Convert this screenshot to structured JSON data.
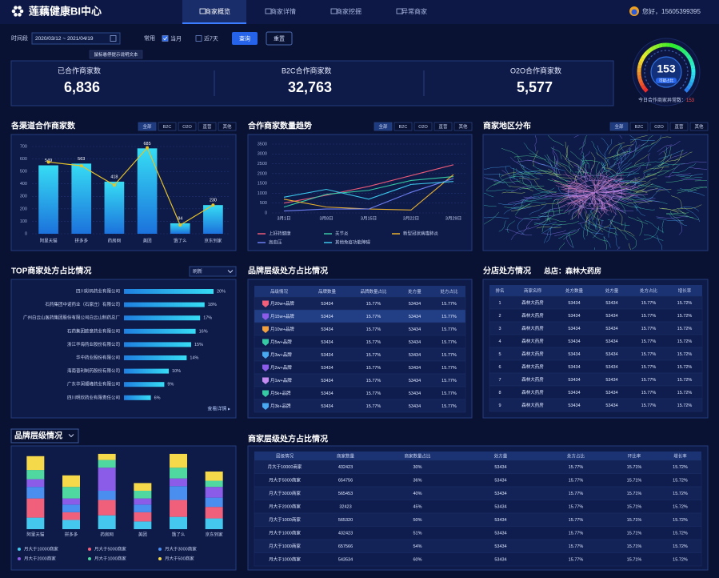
{
  "header": {
    "logo": "莲藕健康BI中心",
    "tabs": [
      "商家概览",
      "商家详情",
      "商家挖掘",
      "异常商家"
    ],
    "user": "您好，15605399395"
  },
  "filters": {
    "label": "时间段",
    "range": "2020/03/12 ~ 2021/04/19",
    "common": "常用",
    "options": [
      "当月",
      "近7天"
    ],
    "checked": [
      true,
      false
    ],
    "query": "查询",
    "reset": "重置",
    "tooltip": "鼠标悬停提示说明文本"
  },
  "kpis": [
    {
      "label": "已合作商家数",
      "value": "6,836"
    },
    {
      "label": "B2C合作商家数",
      "value": "32,763"
    },
    {
      "label": "O2O合作商家数",
      "value": "5,577"
    }
  ],
  "gauge": {
    "value": 153,
    "tag": "可疑占比",
    "caption": "今日合作商家异常数：",
    "count": "153"
  },
  "tabs": [
    "全部",
    "B2C",
    "O2O",
    "直营",
    "其他"
  ],
  "chart_data": [
    {
      "type": "bar_line",
      "title": "各渠道合作商家数",
      "categories": [
        "阿里天猫",
        "拼多多",
        "药房网",
        "美团",
        "饿了么",
        "京东到家"
      ],
      "series": [
        {
          "type": "bar",
          "color": "#2bc8ef",
          "values": [
            549,
            563,
            418,
            685,
            84,
            230
          ]
        },
        {
          "type": "line",
          "color": "#e6c229",
          "values": [
            575,
            545,
            390,
            690,
            70,
            230
          ]
        }
      ],
      "ylim": [
        0,
        700
      ],
      "yticks": [
        0,
        100,
        200,
        300,
        400,
        500,
        600,
        700
      ],
      "grid": true
    },
    {
      "type": "line",
      "title": "合作商家数量趋势",
      "categories": [
        "3月1日",
        "3月8日",
        "3月15日",
        "3月22日",
        "3月29日"
      ],
      "series": [
        {
          "name": "上好药健康",
          "color": "#e85a78",
          "values": [
            500,
            900,
            1350,
            1900,
            2450
          ]
        },
        {
          "name": "关节炎",
          "color": "#36c9a3",
          "values": [
            300,
            950,
            1150,
            1650,
            1850
          ]
        },
        {
          "name": "新型冠状病毒肺炎",
          "color": "#e8b02e",
          "values": [
            700,
            300,
            200,
            150,
            1950
          ]
        },
        {
          "name": "高血压",
          "color": "#6d7ef0",
          "values": [
            100,
            200,
            200,
            1050,
            1750
          ]
        },
        {
          "name": "其他免疫功能障碍",
          "color": "#3cc6ea",
          "values": [
            800,
            1200,
            700,
            1450,
            1600
          ]
        }
      ],
      "ylim": [
        0,
        3500
      ],
      "yticks": [
        0,
        500,
        1000,
        1500,
        2000,
        2500,
        3000,
        3500
      ],
      "grid": true
    },
    {
      "type": "hbar",
      "title": "TOP商家处方占比情况",
      "dropdown": "刷新",
      "link": "查看详情 ▸",
      "categories": [
        "四川彩码药业有限公司",
        "石药集团中诺药业（石家庄）有限公司",
        "广州白云山医药集团股份有限公司白云山制药总厂",
        "石药集团欧意药业有限公司",
        "浙江华海药业股份有限公司",
        "华中药业股份有限公司",
        "海南普利制药股份有限公司",
        "广东华润顺峰药业有限公司",
        "四川明欣药业有限责任公司"
      ],
      "values": [
        20,
        18,
        17,
        16,
        15,
        14,
        10,
        9,
        6
      ],
      "value_labels": [
        "20%",
        "18%",
        "17%",
        "16%",
        "15%",
        "14%",
        "10%",
        "9%",
        "6%"
      ],
      "color": "#2bc8ef",
      "xlim": [
        0,
        20
      ]
    },
    {
      "type": "stacked_bar",
      "title": "品牌层级情况",
      "categories": [
        "阿里天猫",
        "拼多多",
        "药房网",
        "美团",
        "饿了么",
        "京东到家"
      ],
      "series": [
        {
          "name": "月大于10000商家",
          "color": "#44c8ee",
          "values": [
            15,
            12,
            18,
            10,
            16,
            14
          ]
        },
        {
          "name": "月大于5000商家",
          "color": "#f0607a",
          "values": [
            25,
            10,
            20,
            12,
            22,
            15
          ]
        },
        {
          "name": "月大于3000商家",
          "color": "#4a8ff0",
          "values": [
            15,
            10,
            12,
            10,
            18,
            12
          ]
        },
        {
          "name": "月大于2000商家",
          "color": "#8a5ce8",
          "values": [
            10,
            8,
            30,
            8,
            10,
            14
          ]
        },
        {
          "name": "月大于1000商家",
          "color": "#4fd8a0",
          "values": [
            12,
            15,
            10,
            10,
            14,
            8
          ]
        },
        {
          "name": "月大于500商家",
          "color": "#f5d94a",
          "values": [
            18,
            15,
            8,
            10,
            18,
            12
          ]
        }
      ],
      "ylim": [
        0,
        100
      ]
    }
  ],
  "map": {
    "title": "商家地区分布"
  },
  "brand_table": {
    "title": "品牌层级处方占比情况",
    "columns": [
      "品级情况",
      "品牌数量",
      "品牌数量占比",
      "处方量",
      "处方占比"
    ],
    "rows": [
      [
        "月20w+品牌",
        "53434",
        "15.77%",
        "53434",
        "15.77%"
      ],
      [
        "月15w+品牌",
        "53434",
        "15.77%",
        "53434",
        "15.77%"
      ],
      [
        "月10w+品牌",
        "53434",
        "15.77%",
        "53434",
        "15.77%"
      ],
      [
        "月5w+品牌",
        "53434",
        "15.77%",
        "53434",
        "15.77%"
      ],
      [
        "月3w+品牌",
        "53434",
        "15.77%",
        "53434",
        "15.77%"
      ],
      [
        "月2w+品牌",
        "53434",
        "15.77%",
        "53434",
        "15.77%"
      ],
      [
        "月1w+品牌",
        "53434",
        "15.77%",
        "53434",
        "15.77%"
      ],
      [
        "月5k+品牌",
        "53434",
        "15.77%",
        "53434",
        "15.77%"
      ],
      [
        "月3k+品牌",
        "53434",
        "15.77%",
        "53434",
        "15.77%"
      ]
    ]
  },
  "branch_table": {
    "title": "分店处方情况",
    "store": "总店：森林大药房",
    "columns": [
      "排名",
      "商家名称",
      "处方数量",
      "处方量",
      "处方占比",
      "增长率"
    ],
    "rows": [
      [
        "1",
        "森林大药房",
        "53434",
        "53434",
        "15.77%",
        "15.72%"
      ],
      [
        "2",
        "森林大药房",
        "53434",
        "53434",
        "15.77%",
        "15.72%"
      ],
      [
        "3",
        "森林大药房",
        "53434",
        "53434",
        "15.77%",
        "15.72%"
      ],
      [
        "4",
        "森林大药房",
        "53434",
        "53434",
        "15.77%",
        "15.72%"
      ],
      [
        "5",
        "森林大药房",
        "53434",
        "53434",
        "15.77%",
        "15.72%"
      ],
      [
        "6",
        "森林大药房",
        "53434",
        "53434",
        "15.77%",
        "15.72%"
      ],
      [
        "7",
        "森林大药房",
        "53434",
        "53434",
        "15.77%",
        "15.72%"
      ],
      [
        "8",
        "森林大药房",
        "53434",
        "53434",
        "15.77%",
        "15.72%"
      ],
      [
        "9",
        "森林大药房",
        "53434",
        "53434",
        "15.77%",
        "15.72%"
      ]
    ]
  },
  "tier_table": {
    "title": "商家层级处方占比情况",
    "columns": [
      "层级情况",
      "商家数量",
      "商家数量占比",
      "处方量",
      "处方占比",
      "环比率",
      "增长率"
    ],
    "rows": [
      [
        "月大于10000商家",
        "432423",
        "30%",
        "53434",
        "15.77%",
        "15.71%",
        "15.72%"
      ],
      [
        "月大于5000商家",
        "654756",
        "36%",
        "53434",
        "15.77%",
        "15.71%",
        "15.72%"
      ],
      [
        "月大于3000商家",
        "565453",
        "40%",
        "53434",
        "15.77%",
        "15.71%",
        "15.72%"
      ],
      [
        "月大于2000商家",
        "32423",
        "45%",
        "53434",
        "15.77%",
        "15.71%",
        "15.72%"
      ],
      [
        "月大于1000商家",
        "565320",
        "50%",
        "53434",
        "15.77%",
        "15.71%",
        "15.72%"
      ],
      [
        "月大于1000商家",
        "432423",
        "51%",
        "53434",
        "15.77%",
        "15.71%",
        "15.72%"
      ],
      [
        "月大于1000商家",
        "657566",
        "54%",
        "53434",
        "15.77%",
        "15.71%",
        "15.72%"
      ],
      [
        "月大于1000商家",
        "543534",
        "60%",
        "53434",
        "15.77%",
        "15.71%",
        "15.72%"
      ]
    ]
  }
}
